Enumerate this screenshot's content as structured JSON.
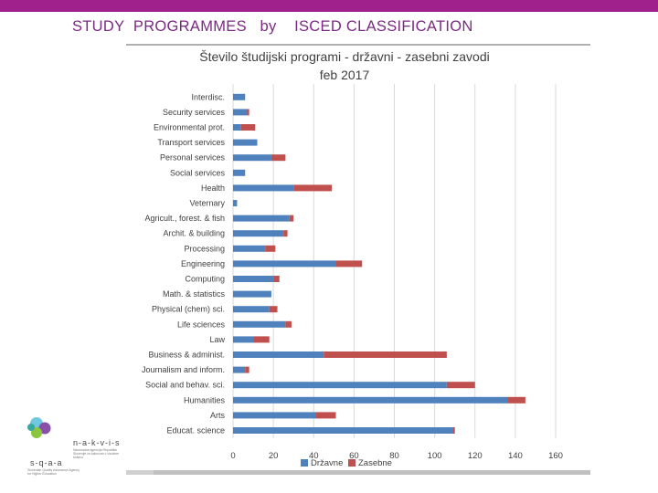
{
  "slide": {
    "title": "STUDY  PROGRAMMES   by    ISCED CLASSIFICATION"
  },
  "logos": {
    "nakvis_name": "n-a-k-v-i-s",
    "nakvis_sub": "Nacionalna agencija Republike Slovenije za kakovost v visokem šolstvu",
    "sqaa_name": "s-q-a-a",
    "sqaa_sub": "Slovenian Quality Assurance Agency for Higher Education"
  },
  "colors": {
    "brand": "#a0208c",
    "title_text": "#7a2a82",
    "series_public": "#4f81bd",
    "series_private": "#c0504d"
  },
  "chart_data": {
    "type": "bar",
    "orientation": "horizontal",
    "stacked": true,
    "title": "Število študijski programi - državni - zasebni zavodi",
    "subtitle": "feb 2017",
    "categories": [
      "Interdisc.",
      "Security services",
      "Environmental prot.",
      "Transport services",
      "Personal services",
      "Social services",
      "Health",
      "Veternary",
      "Agricult., forest. & fish",
      "Archit. & building",
      "Processing",
      "Engineering",
      "Computing",
      "Math. & statistics",
      "Physical (chem) sci.",
      "Life sciences",
      "Law",
      "Business & administ.",
      "Journalism and inform.",
      "Social and behav. sci.",
      "Humanities",
      "Arts",
      "Educat. science"
    ],
    "series": [
      {
        "name": "Državne",
        "values": [
          6,
          7,
          4,
          12,
          19,
          6,
          30,
          2,
          28,
          25,
          16,
          51,
          20,
          19,
          18,
          26,
          10,
          45,
          6,
          106,
          136,
          41,
          109
        ]
      },
      {
        "name": "Zasebne",
        "values": [
          0,
          1,
          7,
          0,
          7,
          0,
          19,
          0,
          2,
          2,
          5,
          13,
          3,
          0,
          4,
          3,
          8,
          61,
          2,
          14,
          9,
          10,
          1
        ]
      }
    ],
    "xlim": [
      0,
      160
    ],
    "xticks": [
      "0",
      "20",
      "40",
      "60",
      "80",
      "100",
      "120",
      "140",
      "160"
    ],
    "grid": "vertical",
    "legend": "bottom"
  }
}
